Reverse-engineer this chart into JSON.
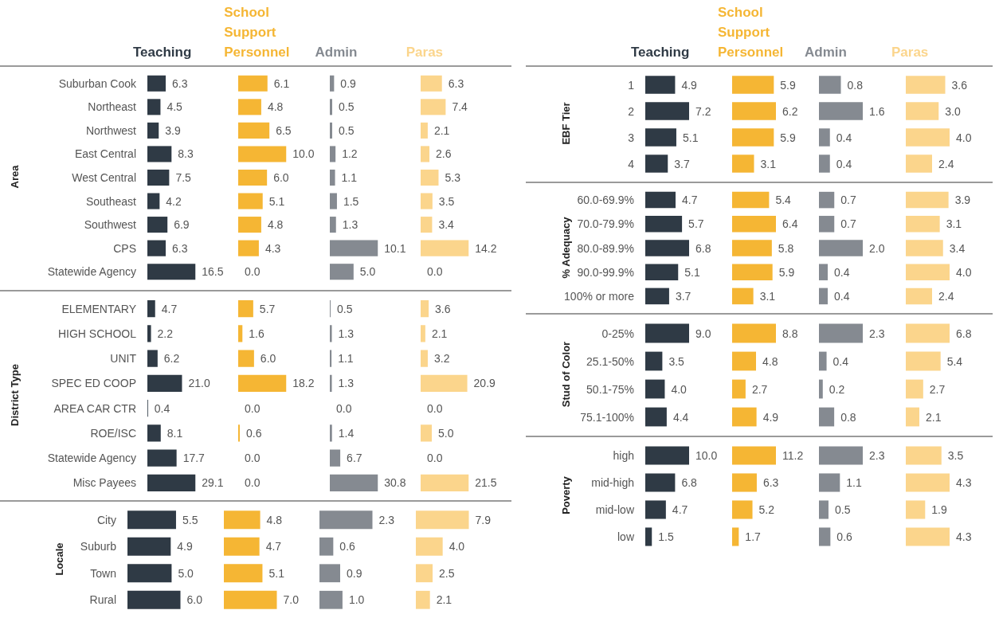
{
  "chart_data": [
    {
      "type": "bar",
      "orientation": "horizontal",
      "title": "Teaching",
      "ylabel": "Area",
      "tick_labels": "y",
      "categories": [
        "Suburban Cook",
        "Northeast",
        "Northwest",
        "East Central",
        "West Central",
        "Southeast",
        "Southwest",
        "CPS",
        "Statewide Agency"
      ],
      "color": "#2f3a45",
      "values": [
        6.3,
        4.5,
        3.9,
        8.3,
        7.5,
        4.2,
        6.9,
        6.3,
        16.5
      ],
      "value_labels": [
        "6.3",
        "4.5",
        "3.9",
        "8.3",
        "7.5",
        "4.2",
        "6.9",
        "6.3",
        "16.5"
      ]
    },
    {
      "type": "bar",
      "orientation": "horizontal",
      "title": "School Support Personnel",
      "categories": [
        null,
        null,
        null,
        null,
        null,
        null,
        null,
        null,
        null
      ],
      "color": "#f5b634",
      "values": [
        6.1,
        4.8,
        6.5,
        10.0,
        6.0,
        5.1,
        4.8,
        4.3,
        0.0
      ],
      "value_labels": [
        "6.1",
        "4.8",
        "6.5",
        "10.0",
        "6.0",
        "5.1",
        "4.8",
        "4.3",
        "0.0"
      ]
    },
    {
      "type": "bar",
      "orientation": "horizontal",
      "title": "Admin",
      "categories": [
        null,
        null,
        null,
        null,
        null,
        null,
        null,
        null,
        null
      ],
      "color": "#858a91",
      "values": [
        0.9,
        0.5,
        0.5,
        1.2,
        1.1,
        1.5,
        1.3,
        10.1,
        5.0
      ],
      "value_labels": [
        "0.9",
        "0.5",
        "0.5",
        "1.2",
        "1.1",
        "1.5",
        "1.3",
        "10.1",
        "5.0"
      ]
    },
    {
      "type": "bar",
      "orientation": "horizontal",
      "title": "Paras",
      "categories": [
        null,
        null,
        null,
        null,
        null,
        null,
        null,
        null,
        null
      ],
      "color": "#fbd58c",
      "values": [
        6.3,
        7.4,
        2.1,
        2.6,
        5.3,
        3.5,
        3.4,
        14.2,
        0.0
      ],
      "value_labels": [
        "6.3",
        "7.4",
        "2.1",
        "2.6",
        "5.3",
        "3.5",
        "3.4",
        "14.2",
        "0.0"
      ]
    },
    {
      "type": "bar",
      "orientation": "horizontal",
      "ylabel": "District Type",
      "tick_labels": "y",
      "categories": [
        "ELEMENTARY",
        "HIGH SCHOOL",
        "UNIT",
        "SPEC ED COOP",
        "AREA CAR CTR",
        "ROE/ISC",
        "Statewide Agency",
        "Misc Payees"
      ],
      "color": "#2f3a45",
      "values": [
        4.7,
        2.2,
        6.2,
        21.0,
        0.4,
        8.1,
        17.7,
        29.1
      ],
      "value_labels": [
        "4.7",
        "2.2",
        "6.2",
        "21.0",
        "0.4",
        "8.1",
        "17.7",
        "29.1"
      ]
    },
    {
      "type": "bar",
      "orientation": "horizontal",
      "categories": [
        null,
        null,
        null,
        null,
        null,
        null,
        null,
        null
      ],
      "color": "#f5b634",
      "values": [
        5.7,
        1.6,
        6.0,
        18.2,
        0.0,
        0.6,
        0.0,
        0.0
      ],
      "value_labels": [
        "5.7",
        "1.6",
        "6.0",
        "18.2",
        "0.0",
        "0.6",
        "0.0",
        "0.0"
      ]
    },
    {
      "type": "bar",
      "orientation": "horizontal",
      "categories": [
        null,
        null,
        null,
        null,
        null,
        null,
        null,
        null
      ],
      "color": "#858a91",
      "values": [
        0.5,
        1.3,
        1.1,
        1.3,
        0.0,
        1.4,
        6.7,
        30.8
      ],
      "value_labels": [
        "0.5",
        "1.3",
        "1.1",
        "1.3",
        "0.0",
        "1.4",
        "6.7",
        "30.8"
      ]
    },
    {
      "type": "bar",
      "orientation": "horizontal",
      "categories": [
        null,
        null,
        null,
        null,
        null,
        null,
        null,
        null
      ],
      "color": "#fbd58c",
      "values": [
        3.6,
        2.1,
        3.2,
        20.9,
        0.0,
        5.0,
        0.0,
        21.5
      ],
      "value_labels": [
        "3.6",
        "2.1",
        "3.2",
        "20.9",
        "0.0",
        "5.0",
        "0.0",
        "21.5"
      ]
    },
    {
      "type": "bar",
      "orientation": "horizontal",
      "ylabel": "Locale",
      "tick_labels": "y",
      "categories": [
        "City",
        "Suburb",
        "Town",
        "Rural"
      ],
      "color": "#2f3a45",
      "values": [
        5.5,
        4.9,
        5.0,
        6.0
      ],
      "value_labels": [
        "5.5",
        "4.9",
        "5.0",
        "6.0"
      ]
    },
    {
      "type": "bar",
      "orientation": "horizontal",
      "categories": [
        null,
        null,
        null,
        null
      ],
      "color": "#f5b634",
      "values": [
        4.8,
        4.7,
        5.1,
        7.0
      ],
      "value_labels": [
        "4.8",
        "4.7",
        "5.1",
        "7.0"
      ]
    },
    {
      "type": "bar",
      "orientation": "horizontal",
      "categories": [
        null,
        null,
        null,
        null
      ],
      "color": "#858a91",
      "values": [
        2.3,
        0.6,
        0.9,
        1.0
      ],
      "value_labels": [
        "2.3",
        "0.6",
        "0.9",
        "1.0"
      ]
    },
    {
      "type": "bar",
      "orientation": "horizontal",
      "categories": [
        null,
        null,
        null,
        null
      ],
      "color": "#fbd58c",
      "values": [
        7.9,
        4.0,
        2.5,
        2.1
      ],
      "value_labels": [
        "7.9",
        "4.0",
        "2.5",
        "2.1"
      ]
    },
    {
      "type": "bar",
      "orientation": "horizontal",
      "title": "Teaching",
      "ylabel": "EBF Tier",
      "tick_labels": "y",
      "categories": [
        "1",
        "2",
        "3",
        "4"
      ],
      "color": "#2f3a45",
      "values": [
        4.9,
        7.2,
        5.1,
        3.7
      ],
      "value_labels": [
        "4.9",
        "7.2",
        "5.1",
        "3.7"
      ]
    },
    {
      "type": "bar",
      "orientation": "horizontal",
      "title": "School Support Personnel",
      "categories": [
        null,
        null,
        null,
        null
      ],
      "color": "#f5b634",
      "values": [
        5.9,
        6.2,
        5.9,
        3.1
      ],
      "value_labels": [
        "5.9",
        "6.2",
        "5.9",
        "3.1"
      ]
    },
    {
      "type": "bar",
      "orientation": "horizontal",
      "title": "Admin",
      "categories": [
        null,
        null,
        null,
        null
      ],
      "color": "#858a91",
      "values": [
        0.8,
        1.6,
        0.4,
        0.4
      ],
      "value_labels": [
        "0.8",
        "1.6",
        "0.4",
        "0.4"
      ]
    },
    {
      "type": "bar",
      "orientation": "horizontal",
      "title": "Paras",
      "categories": [
        null,
        null,
        null,
        null
      ],
      "color": "#fbd58c",
      "values": [
        3.6,
        3.0,
        4.0,
        2.4
      ],
      "value_labels": [
        "3.6",
        "3.0",
        "4.0",
        "2.4"
      ]
    },
    {
      "type": "bar",
      "orientation": "horizontal",
      "ylabel": "% Adequacy",
      "tick_labels": "y",
      "categories": [
        "60.0-69.9%",
        "70.0-79.9%",
        "80.0-89.9%",
        "90.0-99.9%",
        "100% or more"
      ],
      "color": "#2f3a45",
      "values": [
        4.7,
        5.7,
        6.8,
        5.1,
        3.7
      ],
      "value_labels": [
        "4.7",
        "5.7",
        "6.8",
        "5.1",
        "3.7"
      ]
    },
    {
      "type": "bar",
      "orientation": "horizontal",
      "categories": [
        null,
        null,
        null,
        null,
        null
      ],
      "color": "#f5b634",
      "values": [
        5.4,
        6.4,
        5.8,
        5.9,
        3.1
      ],
      "value_labels": [
        "5.4",
        "6.4",
        "5.8",
        "5.9",
        "3.1"
      ]
    },
    {
      "type": "bar",
      "orientation": "horizontal",
      "categories": [
        null,
        null,
        null,
        null,
        null
      ],
      "color": "#858a91",
      "values": [
        0.7,
        0.7,
        2.0,
        0.4,
        0.4
      ],
      "value_labels": [
        "0.7",
        "0.7",
        "2.0",
        "0.4",
        "0.4"
      ]
    },
    {
      "type": "bar",
      "orientation": "horizontal",
      "categories": [
        null,
        null,
        null,
        null,
        null
      ],
      "color": "#fbd58c",
      "values": [
        3.9,
        3.1,
        3.4,
        4.0,
        2.4
      ],
      "value_labels": [
        "3.9",
        "3.1",
        "3.4",
        "4.0",
        "2.4"
      ]
    },
    {
      "type": "bar",
      "orientation": "horizontal",
      "ylabel": "Stud of Color",
      "tick_labels": "y",
      "categories": [
        "0-25%",
        "25.1-50%",
        "50.1-75%",
        "75.1-100%"
      ],
      "color": "#2f3a45",
      "values": [
        9.0,
        3.5,
        4.0,
        4.4
      ],
      "value_labels": [
        "9.0",
        "3.5",
        "4.0",
        "4.4"
      ]
    },
    {
      "type": "bar",
      "orientation": "horizontal",
      "categories": [
        null,
        null,
        null,
        null
      ],
      "color": "#f5b634",
      "values": [
        8.8,
        4.8,
        2.7,
        4.9
      ],
      "value_labels": [
        "8.8",
        "4.8",
        "2.7",
        "4.9"
      ]
    },
    {
      "type": "bar",
      "orientation": "horizontal",
      "categories": [
        null,
        null,
        null,
        null
      ],
      "color": "#858a91",
      "values": [
        2.3,
        0.4,
        0.2,
        0.8
      ],
      "value_labels": [
        "2.3",
        "0.4",
        "0.2",
        "0.8"
      ]
    },
    {
      "type": "bar",
      "orientation": "horizontal",
      "categories": [
        null,
        null,
        null,
        null
      ],
      "color": "#fbd58c",
      "values": [
        6.8,
        5.4,
        2.7,
        2.1
      ],
      "value_labels": [
        "6.8",
        "5.4",
        "2.7",
        "2.1"
      ]
    },
    {
      "type": "bar",
      "orientation": "horizontal",
      "ylabel": "Poverty",
      "tick_labels": "y",
      "categories": [
        "high",
        "mid-high",
        "mid-low",
        "low"
      ],
      "color": "#2f3a45",
      "values": [
        10.0,
        6.8,
        4.7,
        1.5
      ],
      "value_labels": [
        "10.0",
        "6.8",
        "4.7",
        "1.5"
      ]
    },
    {
      "type": "bar",
      "orientation": "horizontal",
      "categories": [
        null,
        null,
        null,
        null
      ],
      "color": "#f5b634",
      "values": [
        11.2,
        6.3,
        5.2,
        1.7
      ],
      "value_labels": [
        "11.2",
        "6.3",
        "5.2",
        "1.7"
      ]
    },
    {
      "type": "bar",
      "orientation": "horizontal",
      "categories": [
        null,
        null,
        null,
        null
      ],
      "color": "#858a91",
      "values": [
        2.3,
        1.1,
        0.5,
        0.6
      ],
      "value_labels": [
        "2.3",
        "1.1",
        "0.5",
        "0.6"
      ]
    },
    {
      "type": "bar",
      "orientation": "horizontal",
      "categories": [
        null,
        null,
        null,
        null
      ],
      "color": "#fbd58c",
      "values": [
        3.5,
        4.3,
        1.9,
        4.3
      ],
      "value_labels": [
        "3.5",
        "4.3",
        "1.9",
        "4.3"
      ]
    }
  ]
}
